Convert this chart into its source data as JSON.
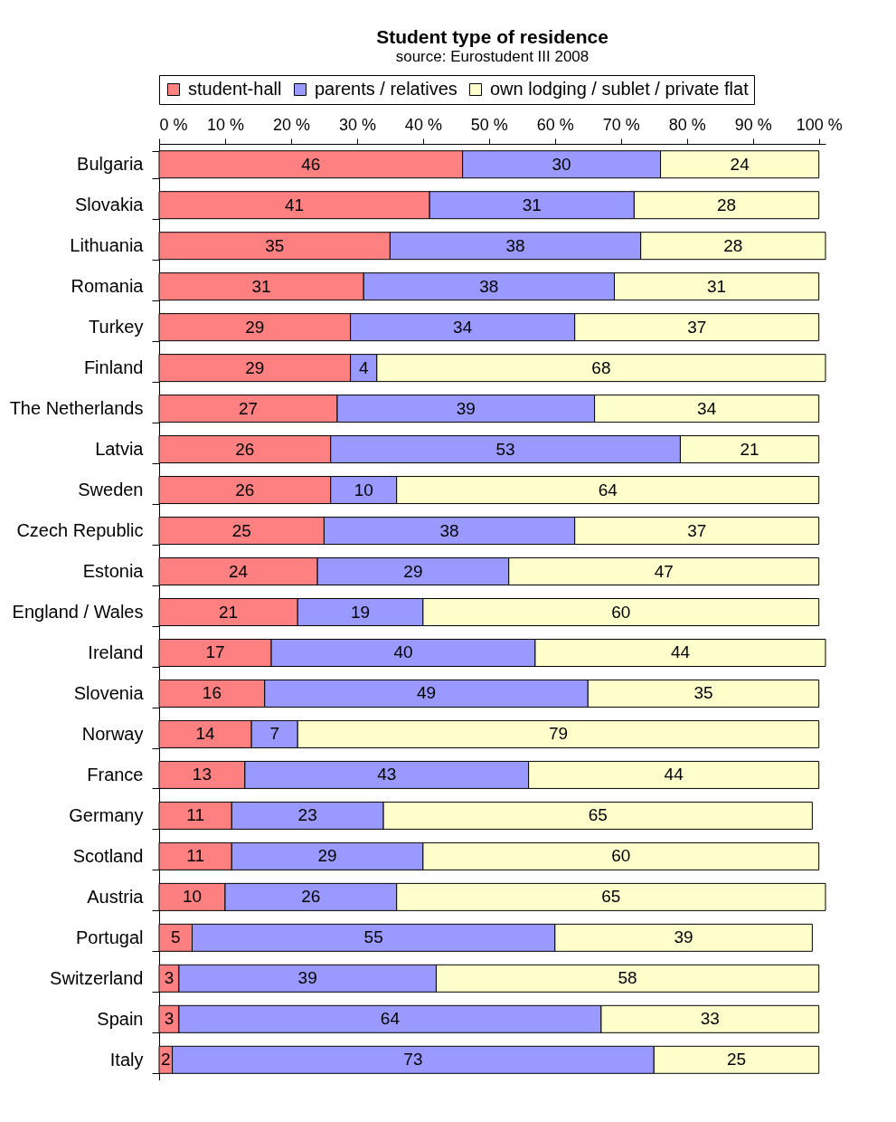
{
  "chart_data": {
    "type": "bar",
    "title": "Student type of residence",
    "subtitle": "source: Eurostudent III 2008",
    "orientation": "horizontal",
    "stacked": true,
    "data_labels": true,
    "legend": "top",
    "grid": false,
    "categories": [
      "Bulgaria",
      "Slovakia",
      "Lithuania",
      "Romania",
      "Turkey",
      "Finland",
      "The Netherlands",
      "Latvia",
      "Sweden",
      "Czech Republic",
      "Estonia",
      "England / Wales",
      "Ireland",
      "Slovenia",
      "Norway",
      "France",
      "Germany",
      "Scotland",
      "Austria",
      "Portugal",
      "Switzerland",
      "Spain",
      "Italy"
    ],
    "series": [
      {
        "name": "student-hall",
        "color": "#ff8080",
        "values": [
          46,
          41,
          35,
          31,
          29,
          29,
          27,
          26,
          26,
          25,
          24,
          21,
          17,
          16,
          14,
          13,
          11,
          11,
          10,
          5,
          3,
          3,
          2
        ]
      },
      {
        "name": "parents / relatives",
        "color": "#9999ff",
        "values": [
          30,
          31,
          38,
          38,
          34,
          4,
          39,
          53,
          10,
          38,
          29,
          19,
          40,
          49,
          7,
          43,
          23,
          29,
          26,
          55,
          39,
          64,
          73
        ]
      },
      {
        "name": "own lodging / sublet / private flat",
        "color": "#ffffcc",
        "values": [
          24,
          28,
          28,
          31,
          37,
          68,
          34,
          21,
          64,
          37,
          47,
          60,
          44,
          35,
          79,
          44,
          65,
          60,
          65,
          39,
          58,
          33,
          25
        ]
      }
    ],
    "xlim": [
      0,
      101
    ],
    "xticks": [
      {
        "value": 0,
        "label": "0 %"
      },
      {
        "value": 10,
        "label": "10 %"
      },
      {
        "value": 20,
        "label": "20 %"
      },
      {
        "value": 30,
        "label": "30 %"
      },
      {
        "value": 40,
        "label": "40 %"
      },
      {
        "value": 50,
        "label": "50 %"
      },
      {
        "value": 60,
        "label": "60 %"
      },
      {
        "value": 70,
        "label": "70 %"
      },
      {
        "value": 80,
        "label": "80 %"
      },
      {
        "value": 90,
        "label": "90 %"
      },
      {
        "value": 100,
        "label": "100 %"
      }
    ]
  }
}
